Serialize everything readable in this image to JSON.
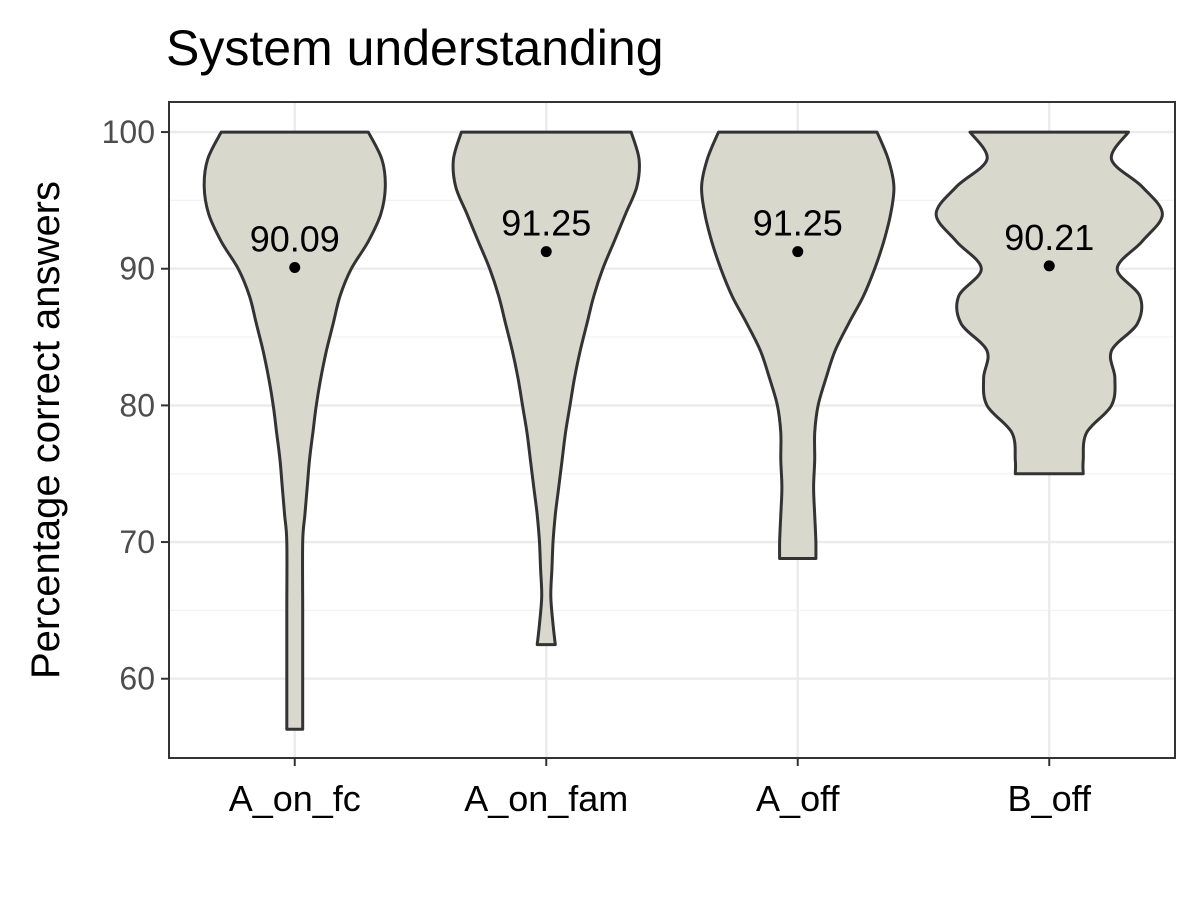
{
  "chart_data": {
    "type": "violin",
    "title": "System understanding",
    "xlabel": "",
    "ylabel": "Percentage correct answers",
    "ylim": [
      54.2,
      102.2
    ],
    "yticks": [
      60,
      70,
      80,
      90,
      100
    ],
    "grid": true,
    "legend": "none",
    "fill_color": "#d9d8cc",
    "stroke_color": "#333333",
    "categories": [
      "A_on_fc",
      "A_on_fam",
      "A_off",
      "B_off"
    ],
    "means": [
      90.09,
      91.25,
      91.25,
      90.21
    ],
    "mean_labels": [
      "90.09",
      "91.25",
      "91.25",
      "90.21"
    ],
    "ranges": [
      [
        56.3,
        100
      ],
      [
        62.5,
        100
      ],
      [
        68.8,
        100
      ],
      [
        75,
        100
      ]
    ],
    "density_profiles": [
      [
        [
          100,
          0.65
        ],
        [
          98,
          0.77
        ],
        [
          96,
          0.8
        ],
        [
          94,
          0.76
        ],
        [
          92,
          0.65
        ],
        [
          90,
          0.5
        ],
        [
          88,
          0.4
        ],
        [
          86,
          0.34
        ],
        [
          84,
          0.28
        ],
        [
          82,
          0.23
        ],
        [
          80,
          0.19
        ],
        [
          78,
          0.16
        ],
        [
          76,
          0.13
        ],
        [
          74,
          0.11
        ],
        [
          72,
          0.09
        ],
        [
          70,
          0.07
        ],
        [
          65,
          0.07
        ],
        [
          60,
          0.07
        ],
        [
          58,
          0.07
        ],
        [
          56.3,
          0.07
        ]
      ],
      [
        [
          100,
          0.75
        ],
        [
          98,
          0.82
        ],
        [
          96,
          0.8
        ],
        [
          94,
          0.7
        ],
        [
          92,
          0.6
        ],
        [
          90,
          0.5
        ],
        [
          88,
          0.42
        ],
        [
          86,
          0.36
        ],
        [
          84,
          0.3
        ],
        [
          82,
          0.25
        ],
        [
          80,
          0.21
        ],
        [
          78,
          0.17
        ],
        [
          76,
          0.14
        ],
        [
          74,
          0.11
        ],
        [
          72,
          0.08
        ],
        [
          70,
          0.06
        ],
        [
          68,
          0.05
        ],
        [
          66,
          0.04
        ],
        [
          64,
          0.06
        ],
        [
          62.5,
          0.08
        ]
      ],
      [
        [
          100,
          0.7
        ],
        [
          98,
          0.8
        ],
        [
          96,
          0.85
        ],
        [
          94,
          0.82
        ],
        [
          92,
          0.76
        ],
        [
          90,
          0.68
        ],
        [
          88,
          0.58
        ],
        [
          86,
          0.45
        ],
        [
          84,
          0.33
        ],
        [
          82,
          0.25
        ],
        [
          80,
          0.18
        ],
        [
          78,
          0.15
        ],
        [
          76,
          0.15
        ],
        [
          74,
          0.14
        ],
        [
          72,
          0.15
        ],
        [
          70,
          0.16
        ],
        [
          68.8,
          0.16
        ]
      ],
      [
        [
          100,
          0.7
        ],
        [
          98,
          0.55
        ],
        [
          96,
          0.82
        ],
        [
          94,
          1.0
        ],
        [
          92,
          0.82
        ],
        [
          90,
          0.6
        ],
        [
          88,
          0.8
        ],
        [
          86,
          0.78
        ],
        [
          84,
          0.55
        ],
        [
          82,
          0.58
        ],
        [
          80,
          0.55
        ],
        [
          78,
          0.33
        ],
        [
          76,
          0.3
        ],
        [
          75,
          0.3
        ]
      ]
    ]
  }
}
